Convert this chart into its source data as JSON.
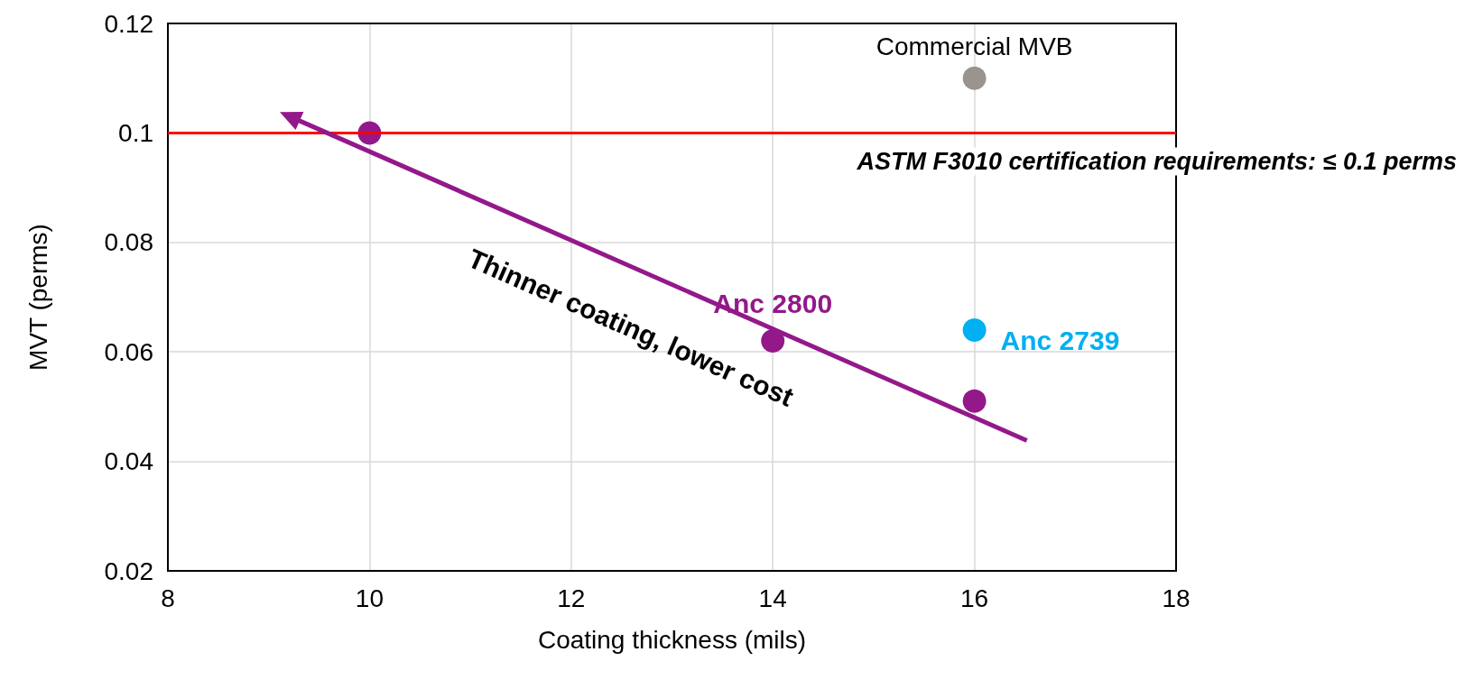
{
  "chart_data": {
    "type": "scatter",
    "xlabel": "Coating thickness (mils)",
    "ylabel": "MVT (perms)",
    "xlim": [
      8,
      18
    ],
    "xticks": [
      8,
      10,
      12,
      14,
      16,
      18
    ],
    "ylim": [
      0.02,
      0.12
    ],
    "yticks": [
      0.02,
      0.04,
      0.06,
      0.08,
      0.1,
      0.12
    ],
    "grid": true,
    "legend": false,
    "marker": "circle",
    "series": [
      {
        "color": "#93198a",
        "x": [
          10,
          16
        ],
        "values": [
          0.1,
          0.051
        ]
      },
      {
        "name": "Anc 2800",
        "color": "#93198a",
        "x": [
          14
        ],
        "values": [
          0.062
        ]
      },
      {
        "name": "Anc 2739",
        "color": "#00b0f0",
        "x": [
          16
        ],
        "values": [
          0.064
        ]
      },
      {
        "name": "Commercial MVB",
        "color": "#9a948e",
        "x": [
          16
        ],
        "values": [
          0.11
        ]
      }
    ],
    "ref_lines": [
      {
        "axis": "y",
        "value": 0.1,
        "label": "ASTM F3010 certification requirements: ≤ 0.1 perms",
        "color": "#ff0000"
      }
    ],
    "annotations": [
      "Thinner coating, lower cost"
    ]
  }
}
